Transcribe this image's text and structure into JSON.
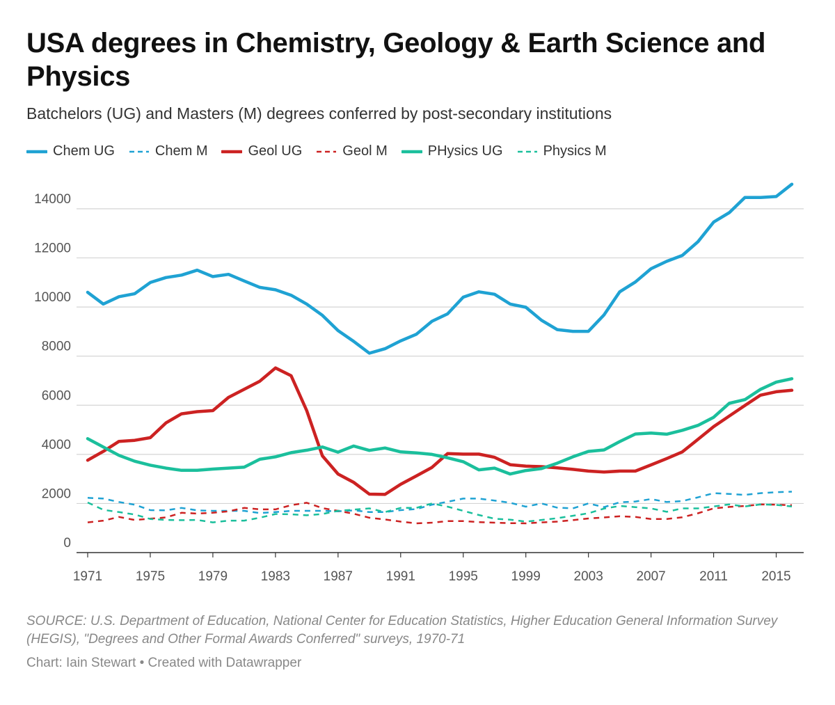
{
  "header": {
    "title": "USA degrees in Chemistry, Geology & Earth Science and Physics",
    "subtitle": "Batchelors (UG) and Masters (M) degrees conferred by post-secondary institutions"
  },
  "footer": {
    "source": "SOURCE: U.S. Department of Education, National Center for Education Statistics, Higher Education General Information Survey (HEGIS), \"Degrees and Other Formal Awards Conferred\" surveys, 1970-71",
    "credit": "Chart: Iain Stewart • Created with Datawrapper"
  },
  "chart_data": {
    "type": "line",
    "title": "USA degrees in Chemistry, Geology & Earth Science and Physics",
    "xlabel": "",
    "ylabel": "",
    "xlim": [
      1971,
      2016
    ],
    "ylim": [
      0,
      14000
    ],
    "yticks": [
      0,
      2000,
      4000,
      6000,
      8000,
      10000,
      12000,
      14000
    ],
    "xticks": [
      1971,
      1975,
      1979,
      1983,
      1987,
      1991,
      1995,
      1999,
      2003,
      2007,
      2011,
      2015
    ],
    "grid": "horizontal",
    "legend_position": "top",
    "x": [
      1971,
      1972,
      1973,
      1974,
      1975,
      1976,
      1977,
      1978,
      1979,
      1980,
      1981,
      1982,
      1983,
      1984,
      1985,
      1986,
      1987,
      1988,
      1989,
      1990,
      1991,
      1992,
      1993,
      1994,
      1995,
      1996,
      1997,
      1998,
      1999,
      2000,
      2001,
      2002,
      2003,
      2004,
      2005,
      2006,
      2007,
      2008,
      2009,
      2010,
      2011,
      2012,
      2013,
      2014,
      2015,
      2016
    ],
    "series": [
      {
        "name": "Chem UG",
        "color": "#1fa2d3",
        "dash": "solid",
        "values": [
          10600,
          10120,
          10420,
          10540,
          11000,
          11200,
          11300,
          11500,
          11240,
          11330,
          11060,
          10800,
          10700,
          10480,
          10120,
          9660,
          9040,
          8600,
          8120,
          8300,
          8620,
          8890,
          9420,
          9720,
          10400,
          10620,
          10520,
          10120,
          9990,
          9460,
          9080,
          9010,
          9010,
          9680,
          10620,
          11020,
          11560,
          11860,
          12100,
          12660,
          13460,
          13840,
          14460,
          14460,
          14500,
          15000
        ]
      },
      {
        "name": "Chem M",
        "color": "#1fa2d3",
        "dash": "dashed",
        "values": [
          2230,
          2200,
          2060,
          1950,
          1730,
          1720,
          1820,
          1720,
          1700,
          1700,
          1700,
          1610,
          1650,
          1700,
          1700,
          1700,
          1680,
          1720,
          1650,
          1650,
          1730,
          1770,
          1950,
          2070,
          2200,
          2200,
          2120,
          2030,
          1870,
          2000,
          1830,
          1800,
          2000,
          1850,
          2050,
          2080,
          2180,
          2060,
          2100,
          2250,
          2420,
          2390,
          2350,
          2420,
          2460,
          2480
        ]
      },
      {
        "name": "Geol UG",
        "color": "#cc2222",
        "dash": "solid",
        "values": [
          3760,
          4120,
          4530,
          4570,
          4680,
          5280,
          5650,
          5740,
          5780,
          6320,
          6650,
          6980,
          7520,
          7200,
          5780,
          3940,
          3200,
          2860,
          2380,
          2370,
          2780,
          3120,
          3470,
          4030,
          4010,
          4010,
          3880,
          3580,
          3520,
          3500,
          3450,
          3390,
          3320,
          3280,
          3320,
          3320,
          3570,
          3830,
          4100,
          4610,
          5130,
          5560,
          5990,
          6410,
          6550,
          6610
        ]
      },
      {
        "name": "Geol M",
        "color": "#cc2222",
        "dash": "dashed",
        "values": [
          1230,
          1300,
          1450,
          1330,
          1380,
          1430,
          1620,
          1590,
          1620,
          1680,
          1820,
          1760,
          1760,
          1930,
          2030,
          1810,
          1700,
          1580,
          1420,
          1350,
          1260,
          1190,
          1220,
          1280,
          1280,
          1240,
          1220,
          1200,
          1190,
          1230,
          1260,
          1320,
          1390,
          1430,
          1480,
          1450,
          1370,
          1370,
          1440,
          1600,
          1800,
          1860,
          1900,
          1960,
          1950,
          1930
        ]
      },
      {
        "name": "PHysics UG",
        "color": "#1bbf9c",
        "dash": "solid",
        "values": [
          4640,
          4300,
          3960,
          3720,
          3560,
          3440,
          3350,
          3350,
          3400,
          3440,
          3480,
          3800,
          3900,
          4070,
          4170,
          4300,
          4090,
          4340,
          4160,
          4260,
          4100,
          4060,
          4000,
          3860,
          3700,
          3370,
          3440,
          3200,
          3340,
          3420,
          3640,
          3900,
          4120,
          4180,
          4520,
          4830,
          4870,
          4820,
          4980,
          5180,
          5510,
          6080,
          6230,
          6650,
          6940,
          7080
        ]
      },
      {
        "name": "Physics M",
        "color": "#1bbf9c",
        "dash": "dashed",
        "values": [
          2040,
          1740,
          1650,
          1550,
          1370,
          1330,
          1320,
          1330,
          1230,
          1300,
          1300,
          1420,
          1570,
          1560,
          1520,
          1570,
          1700,
          1750,
          1800,
          1650,
          1820,
          1820,
          2000,
          1870,
          1700,
          1530,
          1380,
          1340,
          1260,
          1330,
          1400,
          1500,
          1600,
          1790,
          1900,
          1850,
          1800,
          1660,
          1800,
          1800,
          1880,
          1960,
          1880,
          1960,
          1940,
          1880
        ]
      }
    ]
  }
}
